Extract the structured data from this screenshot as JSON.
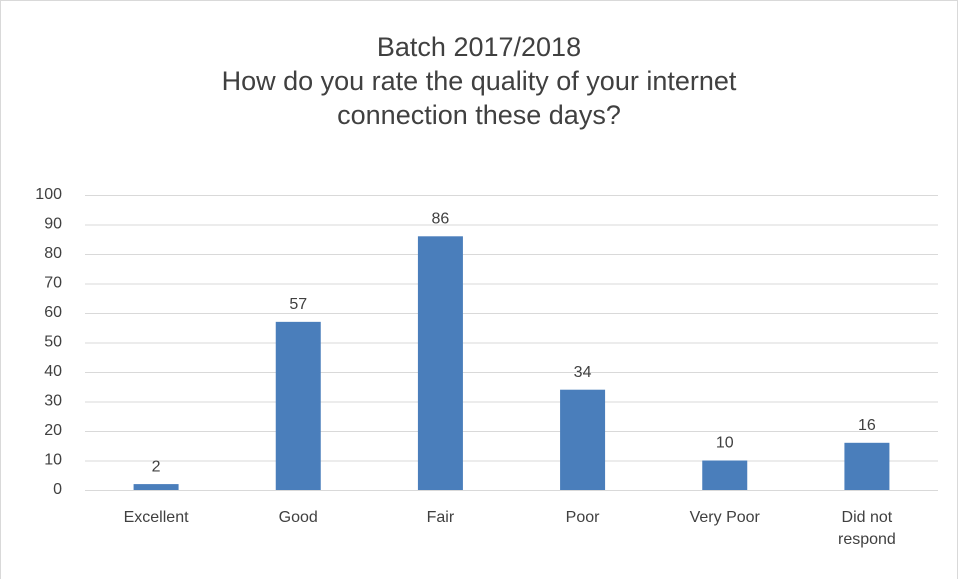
{
  "chart_data": {
    "type": "bar",
    "title": "Batch 2017/2018",
    "subtitle": "How do you rate the quality of your internet connection these days?",
    "categories": [
      "Excellent",
      "Good",
      "Fair",
      "Poor",
      "Very Poor",
      "Did not respond"
    ],
    "values": [
      2,
      57,
      86,
      34,
      10,
      16
    ],
    "color": "#4a7ebb",
    "ylim": [
      0,
      100
    ],
    "yticks": [
      0,
      10,
      20,
      30,
      40,
      50,
      60,
      70,
      80,
      90,
      100
    ],
    "grid": true
  }
}
